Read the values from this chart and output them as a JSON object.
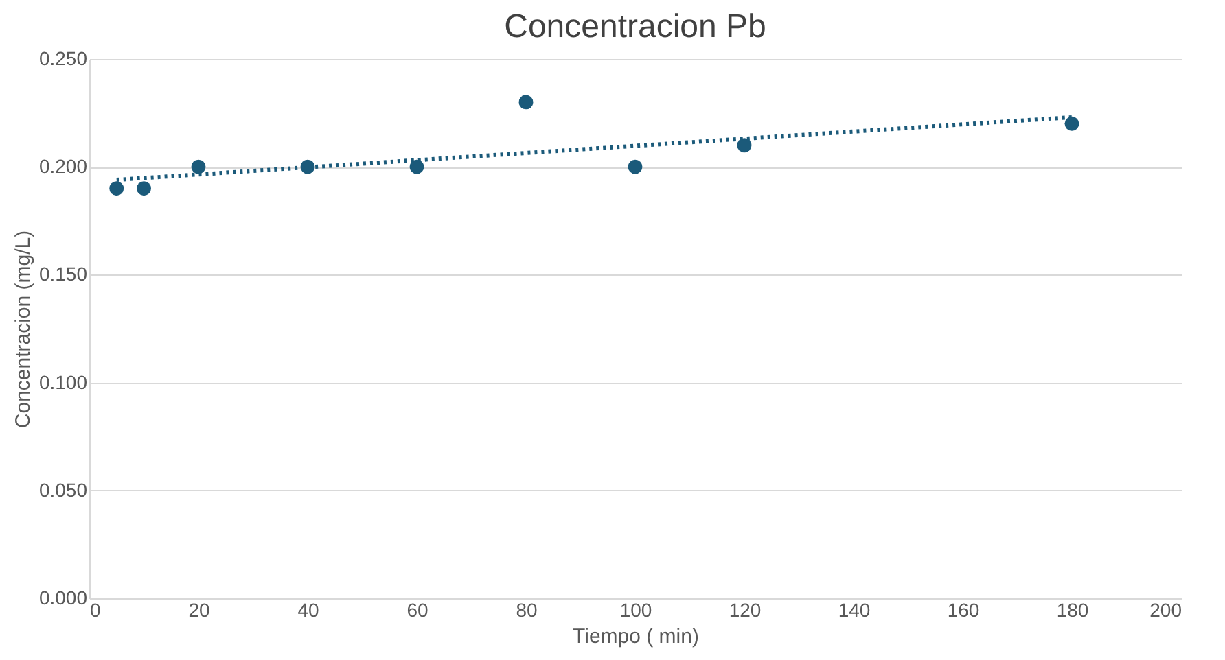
{
  "chart_data": {
    "type": "scatter",
    "title": "Concentracion Pb",
    "xlabel": "Tiempo ( min)",
    "ylabel": "Concentracion (mg/L)",
    "x": [
      5,
      10,
      20,
      40,
      60,
      80,
      100,
      120,
      180
    ],
    "series": [
      {
        "color": "#1b5a7a",
        "values": [
          0.19,
          0.19,
          0.2,
          0.2,
          0.2,
          0.23,
          0.2,
          0.21,
          0.22
        ],
        "marker": "circle"
      },
      {
        "type": "line",
        "color": "#1b5a7a",
        "x": [
          5,
          180
        ],
        "values": [
          0.194,
          0.223
        ],
        "line_style": "dotted",
        "marker": "none"
      }
    ],
    "xlim": [
      0,
      200
    ],
    "xticks": [
      0,
      20,
      40,
      60,
      80,
      100,
      120,
      140,
      160,
      180,
      200
    ],
    "ylim": [
      0,
      0.25
    ],
    "yticks": [
      {
        "value": 0,
        "label": "0.000"
      },
      {
        "value": 0.05,
        "label": "0.050"
      },
      {
        "value": 0.1,
        "label": "0.100"
      },
      {
        "value": 0.15,
        "label": "0.150"
      },
      {
        "value": 0.2,
        "label": "0.200"
      },
      {
        "value": 0.25,
        "label": "0.250"
      }
    ],
    "grid": "y"
  }
}
